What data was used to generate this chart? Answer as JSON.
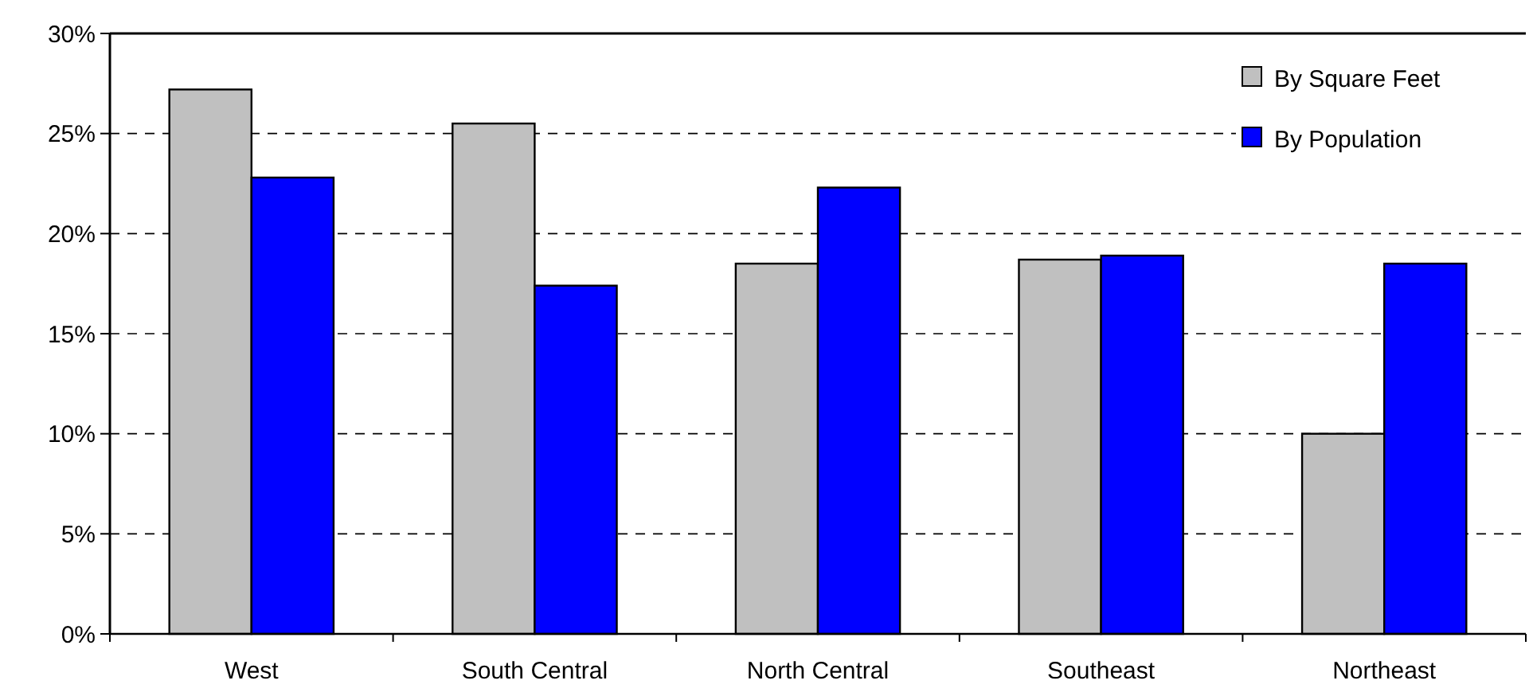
{
  "chart_data": {
    "type": "bar",
    "categories": [
      "West",
      "South Central",
      "North Central",
      "Southeast",
      "Northeast"
    ],
    "series": [
      {
        "name": "By Square Feet",
        "color": "#c0c0c0",
        "values": [
          27.2,
          25.5,
          18.5,
          18.7,
          10.0
        ]
      },
      {
        "name": "By Population",
        "color": "#0000ff",
        "values": [
          22.8,
          17.4,
          22.3,
          18.9,
          18.5
        ]
      }
    ],
    "ylim": [
      0,
      30
    ],
    "yticks": [
      {
        "value": 0,
        "label": "0%"
      },
      {
        "value": 5,
        "label": "5%"
      },
      {
        "value": 10,
        "label": "10%"
      },
      {
        "value": 15,
        "label": "15%"
      },
      {
        "value": 20,
        "label": "20%"
      },
      {
        "value": 25,
        "label": "25%"
      },
      {
        "value": 30,
        "label": "30%"
      }
    ],
    "grid": "y",
    "legend": "top right"
  }
}
